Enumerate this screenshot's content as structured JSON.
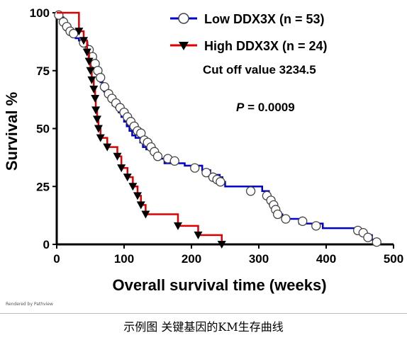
{
  "chart_data": {
    "type": "line",
    "subtype": "kaplan-meier",
    "xlabel": "Overall survival time (weeks)",
    "ylabel": "Survival %",
    "xlim": [
      0,
      500
    ],
    "ylim": [
      0,
      100
    ],
    "xticks": [
      0,
      100,
      200,
      300,
      400,
      500
    ],
    "yticks": [
      0,
      25,
      50,
      75,
      100
    ],
    "grid": false,
    "legend_position": "top-right",
    "annotations": {
      "cutoff": "Cut off value 3234.5",
      "p_label": "P",
      "p_value": " = 0.0009"
    },
    "series": [
      {
        "name": "Low  DDX3X (n = 53)",
        "color": "#0000cc",
        "marker": "open-circle",
        "steps": [
          [
            0,
            100
          ],
          [
            5,
            98
          ],
          [
            10,
            96
          ],
          [
            15,
            94
          ],
          [
            18,
            92
          ],
          [
            22,
            90
          ],
          [
            28,
            89
          ],
          [
            33,
            88
          ],
          [
            38,
            87
          ],
          [
            42,
            86
          ],
          [
            46,
            85
          ],
          [
            48,
            84
          ],
          [
            52,
            81
          ],
          [
            55,
            79
          ],
          [
            58,
            77
          ],
          [
            60,
            75
          ],
          [
            62,
            73
          ],
          [
            65,
            70
          ],
          [
            68,
            68
          ],
          [
            70,
            66
          ],
          [
            74,
            64
          ],
          [
            78,
            62
          ],
          [
            83,
            60
          ],
          [
            88,
            59
          ],
          [
            92,
            57
          ],
          [
            96,
            55
          ],
          [
            100,
            53
          ],
          [
            104,
            51
          ],
          [
            108,
            49
          ],
          [
            112,
            47
          ],
          [
            117,
            46
          ],
          [
            124,
            44
          ],
          [
            128,
            42
          ],
          [
            133,
            41
          ],
          [
            140,
            40
          ],
          [
            146,
            38
          ],
          [
            150,
            37
          ],
          [
            160,
            35
          ],
          [
            190,
            34
          ],
          [
            216,
            32
          ],
          [
            228,
            30
          ],
          [
            242,
            29
          ],
          [
            246,
            27
          ],
          [
            250,
            25
          ],
          [
            305,
            23
          ],
          [
            315,
            20
          ],
          [
            322,
            18
          ],
          [
            326,
            15
          ],
          [
            330,
            13
          ],
          [
            335,
            11
          ],
          [
            360,
            9
          ],
          [
            395,
            7
          ],
          [
            448,
            5
          ],
          [
            460,
            4
          ],
          [
            468,
            2
          ],
          [
            476,
            0
          ]
        ],
        "censored": [
          [
            3,
            99
          ],
          [
            10,
            96
          ],
          [
            15,
            94
          ],
          [
            20,
            92
          ],
          [
            25,
            91
          ],
          [
            40,
            87
          ],
          [
            48,
            84
          ],
          [
            53,
            81
          ],
          [
            57,
            78
          ],
          [
            61,
            75
          ],
          [
            65,
            72
          ],
          [
            71,
            68
          ],
          [
            77,
            65
          ],
          [
            82,
            63
          ],
          [
            88,
            61
          ],
          [
            94,
            59
          ],
          [
            100,
            57
          ],
          [
            105,
            55
          ],
          [
            110,
            53
          ],
          [
            115,
            51
          ],
          [
            120,
            49
          ],
          [
            125,
            48
          ],
          [
            130,
            45
          ],
          [
            135,
            44
          ],
          [
            140,
            42
          ],
          [
            145,
            40
          ],
          [
            150,
            38
          ],
          [
            165,
            37
          ],
          [
            175,
            36
          ],
          [
            205,
            33
          ],
          [
            222,
            31
          ],
          [
            232,
            29
          ],
          [
            238,
            28
          ],
          [
            243,
            27
          ],
          [
            288,
            23
          ],
          [
            312,
            21
          ],
          [
            318,
            19
          ],
          [
            322,
            17
          ],
          [
            325,
            15
          ],
          [
            328,
            13
          ],
          [
            340,
            11
          ],
          [
            365,
            10
          ],
          [
            385,
            8
          ],
          [
            447,
            6
          ],
          [
            455,
            5
          ],
          [
            462,
            3
          ],
          [
            475,
            1
          ]
        ]
      },
      {
        "name": "High  DDX3X (n = 24)",
        "color": "#dd0000",
        "marker": "filled-triangle-down",
        "steps": [
          [
            0,
            100
          ],
          [
            33,
            92
          ],
          [
            40,
            88
          ],
          [
            45,
            83
          ],
          [
            48,
            79
          ],
          [
            50,
            75
          ],
          [
            52,
            71
          ],
          [
            55,
            67
          ],
          [
            57,
            63
          ],
          [
            58,
            58
          ],
          [
            60,
            54
          ],
          [
            62,
            50
          ],
          [
            65,
            46
          ],
          [
            75,
            42
          ],
          [
            90,
            38
          ],
          [
            96,
            33
          ],
          [
            105,
            29
          ],
          [
            113,
            25
          ],
          [
            120,
            21
          ],
          [
            125,
            17
          ],
          [
            132,
            13
          ],
          [
            180,
            8
          ],
          [
            210,
            4
          ],
          [
            245,
            0
          ]
        ],
        "markers": [
          [
            33,
            92
          ],
          [
            40,
            88
          ],
          [
            45,
            83
          ],
          [
            48,
            79
          ],
          [
            50,
            75
          ],
          [
            52,
            71
          ],
          [
            55,
            67
          ],
          [
            57,
            63
          ],
          [
            58,
            58
          ],
          [
            60,
            54
          ],
          [
            62,
            50
          ],
          [
            65,
            46
          ],
          [
            75,
            42
          ],
          [
            90,
            38
          ],
          [
            96,
            33
          ],
          [
            105,
            29
          ],
          [
            113,
            25
          ],
          [
            120,
            21
          ],
          [
            125,
            17
          ],
          [
            132,
            13
          ],
          [
            180,
            8
          ],
          [
            210,
            4
          ],
          [
            245,
            0
          ]
        ]
      }
    ]
  },
  "footer_note": [
    "Rendered by Pathview"
  ],
  "caption": "示例图 关键基因的KM生存曲线"
}
